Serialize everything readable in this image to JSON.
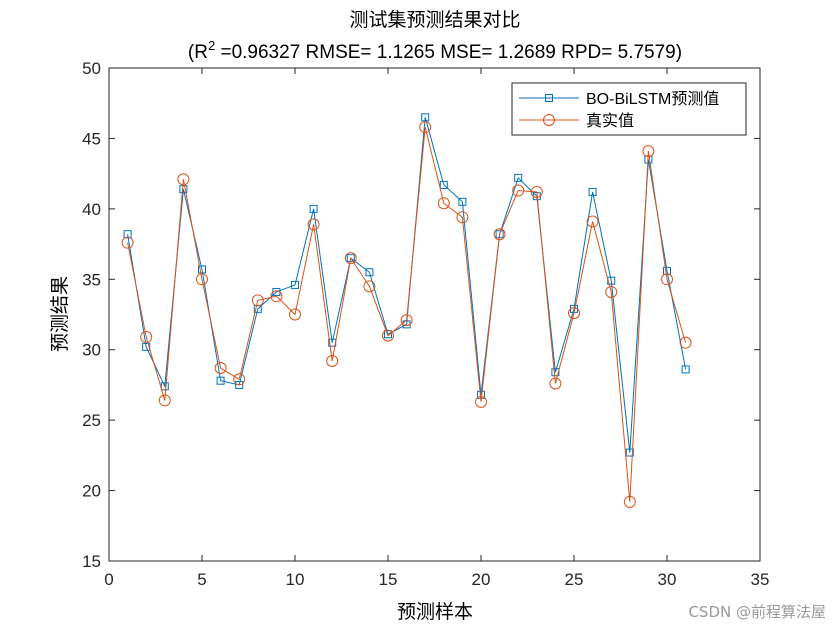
{
  "chart_data": {
    "type": "line",
    "title": "测试集预测结果对比",
    "subtitle_parts": {
      "open": "(R",
      "sup": "2",
      "rest": " =0.96327 RMSE= 1.1265 MSE= 1.2689 RPD= 5.7579)"
    },
    "xlabel": "预测样本",
    "ylabel": "预测结果",
    "xlim": [
      0,
      35
    ],
    "ylim": [
      15,
      50
    ],
    "xticks": [
      0,
      5,
      10,
      15,
      20,
      25,
      30,
      35
    ],
    "yticks": [
      15,
      20,
      25,
      30,
      35,
      40,
      45,
      50
    ],
    "grid": false,
    "legend_position": "top-right",
    "x": [
      1,
      2,
      3,
      4,
      5,
      6,
      7,
      8,
      9,
      10,
      11,
      12,
      13,
      14,
      15,
      16,
      17,
      18,
      19,
      20,
      21,
      22,
      23,
      24,
      25,
      26,
      27,
      28,
      29,
      30,
      31
    ],
    "series": [
      {
        "name": "BO-BiLSTM预测值",
        "color": "#0072BD",
        "marker": "square",
        "values": [
          38.2,
          30.2,
          27.4,
          41.4,
          35.7,
          27.8,
          27.5,
          32.9,
          34.1,
          34.6,
          40.0,
          30.5,
          36.5,
          35.5,
          31.1,
          31.8,
          46.5,
          41.7,
          40.5,
          26.8,
          38.2,
          42.2,
          40.9,
          28.4,
          32.9,
          41.2,
          34.9,
          22.7,
          43.5,
          35.6,
          28.6
        ]
      },
      {
        "name": "真实值",
        "color": "#D95319",
        "marker": "circle",
        "values": [
          37.6,
          30.9,
          26.4,
          42.1,
          35.0,
          28.7,
          27.9,
          33.5,
          33.8,
          32.5,
          38.9,
          29.2,
          36.5,
          34.5,
          31.0,
          32.1,
          45.8,
          40.4,
          39.4,
          26.3,
          38.2,
          41.3,
          41.2,
          27.6,
          32.6,
          39.1,
          34.1,
          19.2,
          44.1,
          35.0,
          30.5
        ]
      }
    ]
  },
  "watermark": "CSDN @前程算法屋"
}
